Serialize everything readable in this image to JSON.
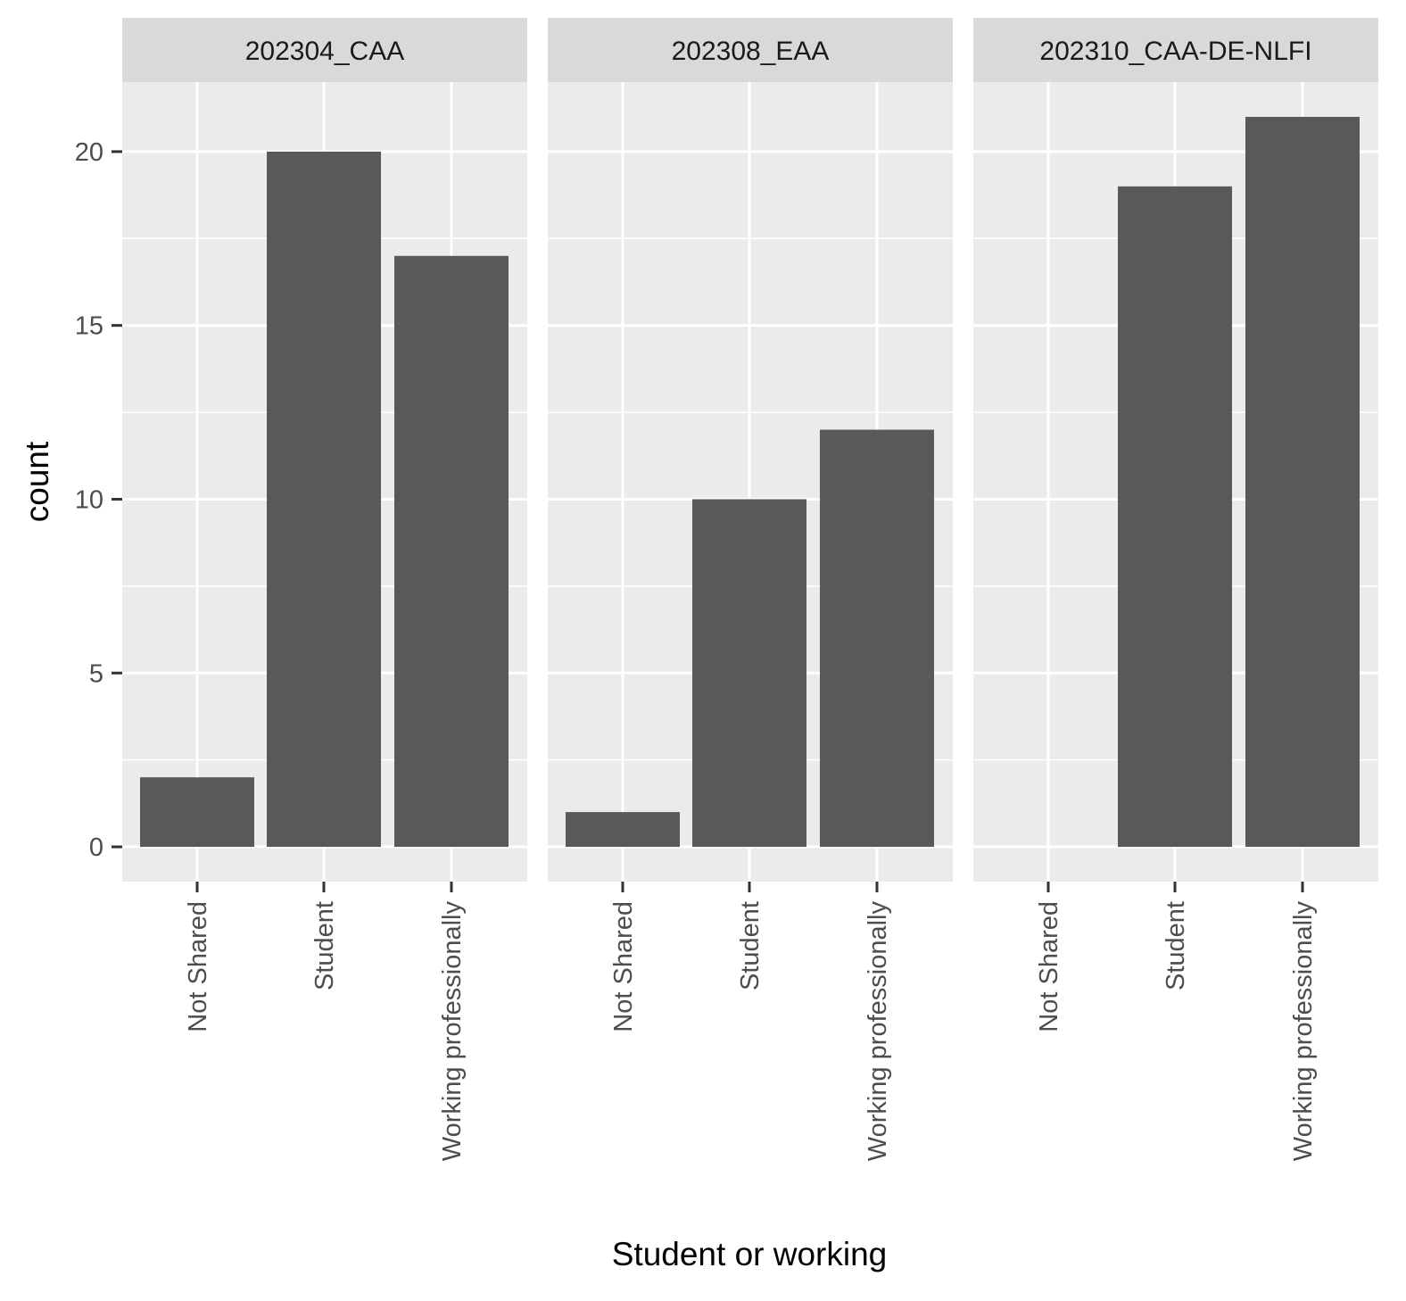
{
  "chart_data": {
    "type": "bar",
    "layout": "facets",
    "xlabel": "Student or working",
    "ylabel": "count",
    "categories": [
      "Not Shared",
      "Student",
      "Working professionally"
    ],
    "ylim": [
      -1,
      22
    ],
    "yticks": [
      0,
      5,
      10,
      15,
      20
    ],
    "grid": true,
    "legend": "none",
    "bar_color": "#595959",
    "panel_bg": "#ebebeb",
    "strip_bg": "#d9d9d9",
    "facets": [
      {
        "label": "202304_CAA",
        "values": [
          2,
          20,
          17
        ]
      },
      {
        "label": "202308_EAA",
        "values": [
          1,
          10,
          12
        ]
      },
      {
        "label": "202310_CAA-DE-NLFI",
        "values": [
          0,
          19,
          21
        ]
      }
    ]
  }
}
